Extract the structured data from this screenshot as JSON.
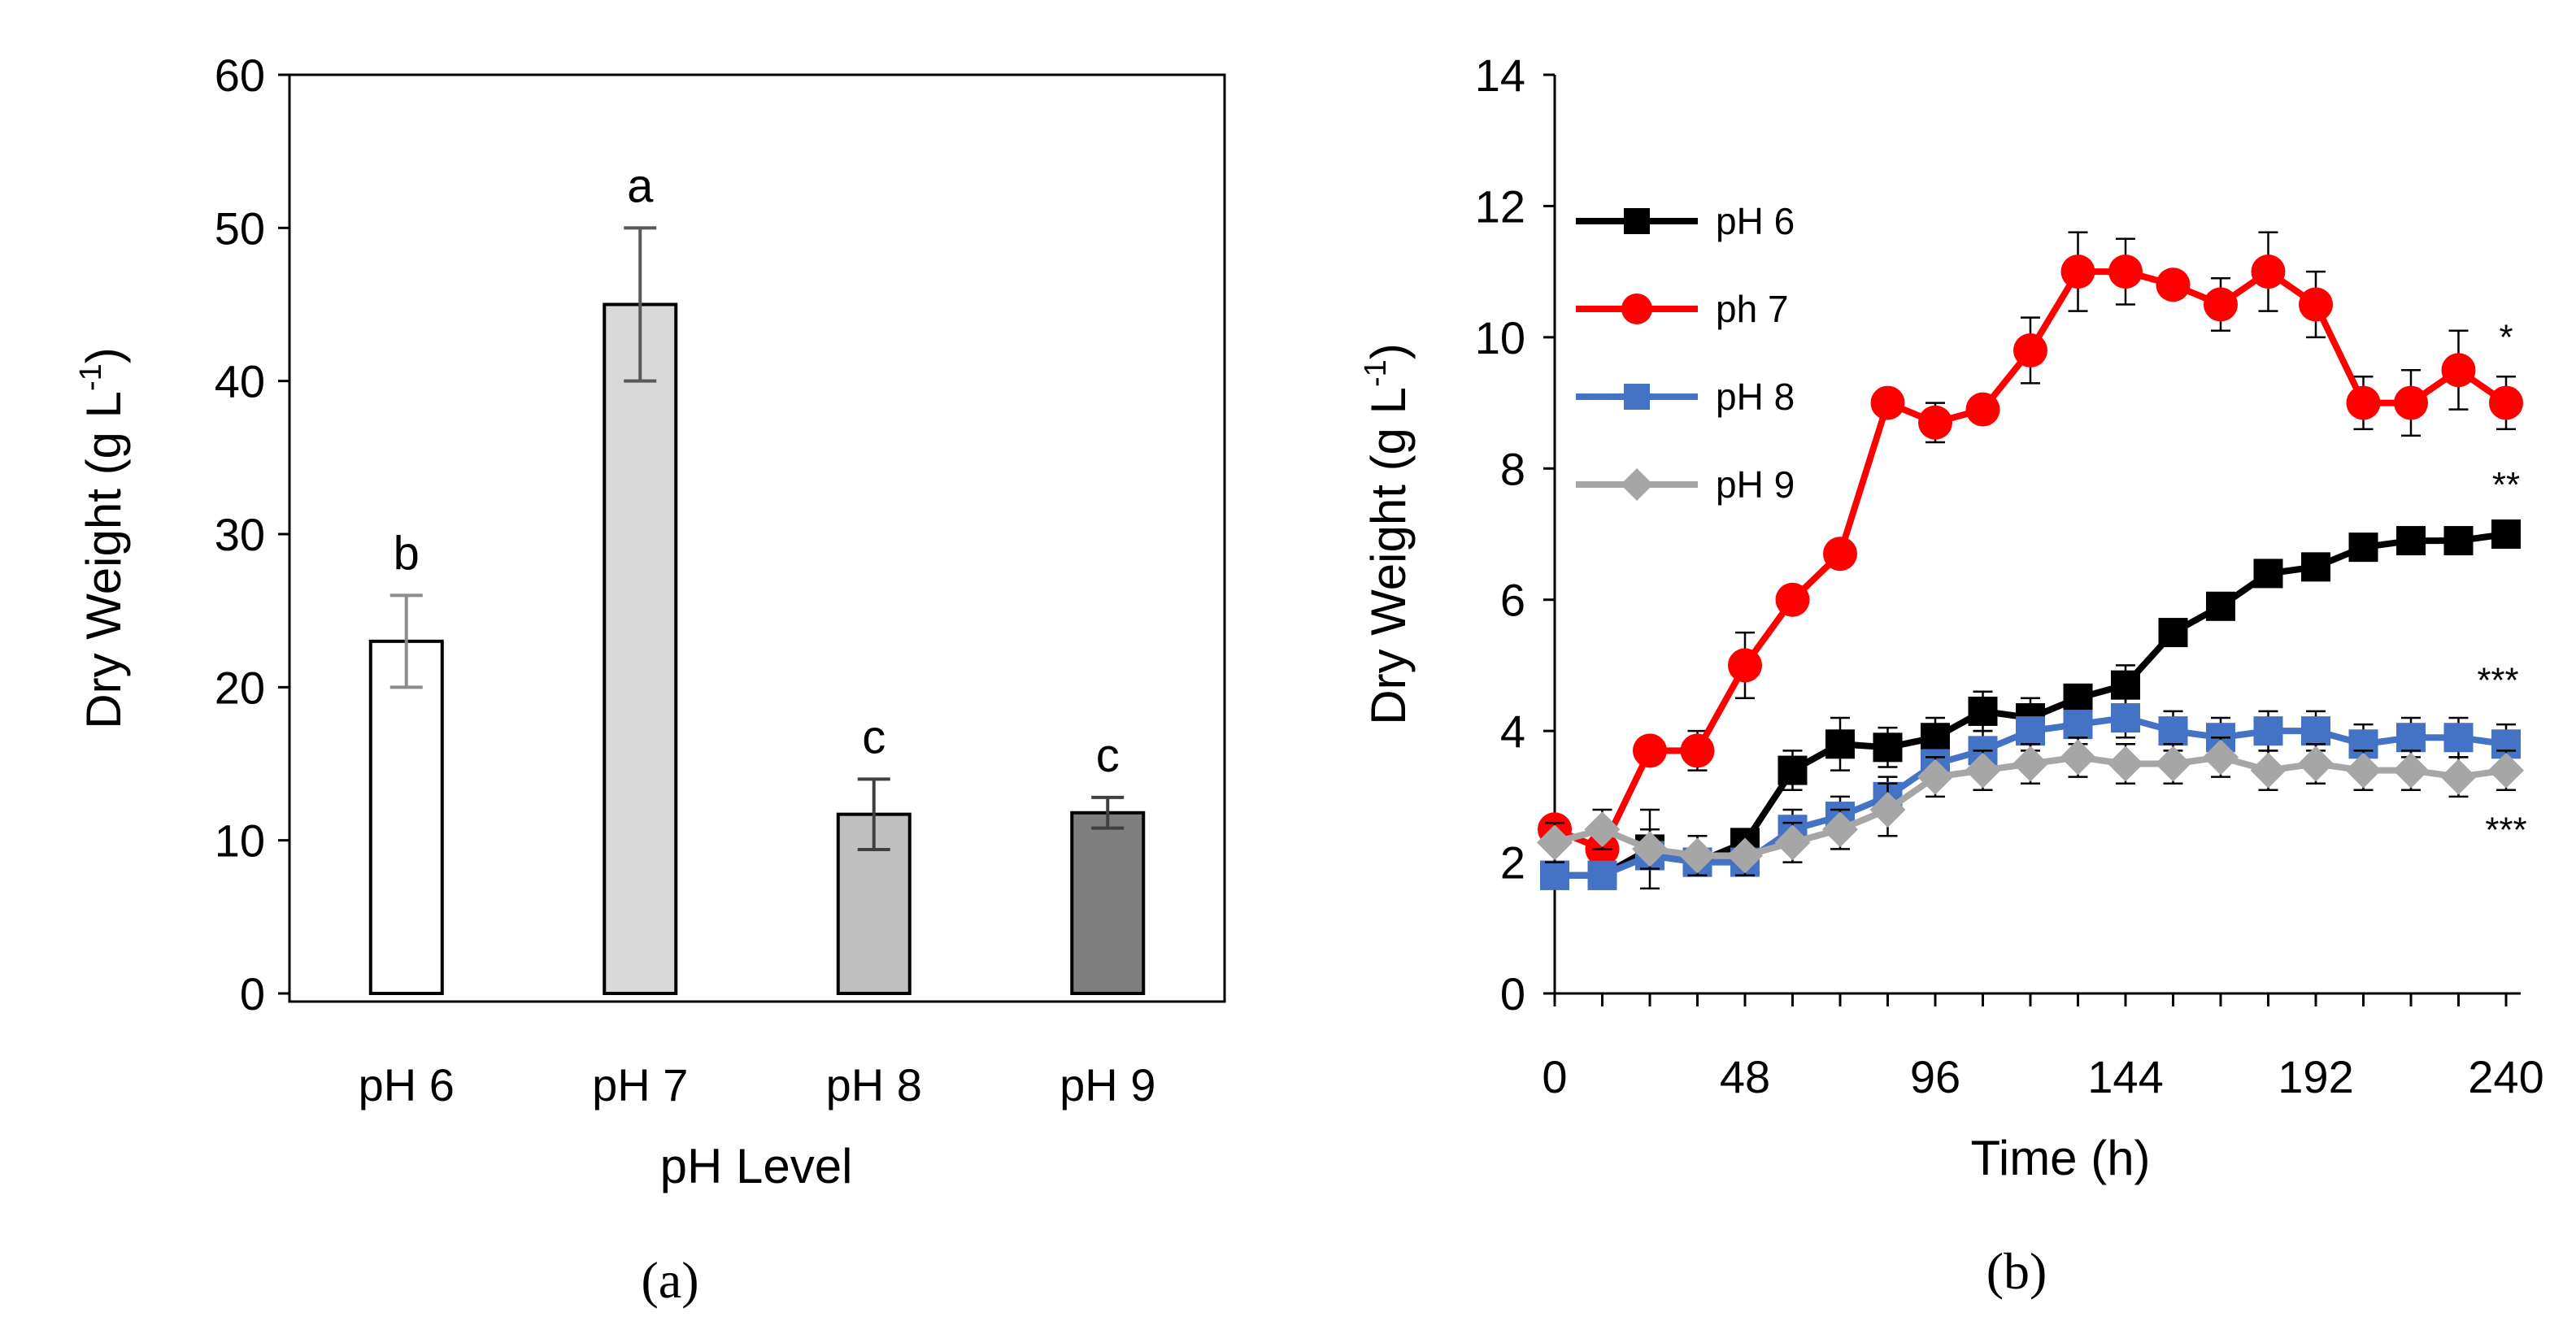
{
  "chart_data": [
    {
      "panel_label": "(a)",
      "type": "bar",
      "xlabel": "pH Level",
      "ylabel": "Dry Weight (g L",
      "ylabel_sup": "-1",
      "ylabel_end": ")",
      "ylim": [
        0,
        60
      ],
      "yticks": [
        "0",
        "10",
        "20",
        "30",
        "40",
        "50",
        "60"
      ],
      "categories": [
        "pH 6",
        "pH 7",
        "pH 8",
        "pH 9"
      ],
      "values": [
        23,
        45,
        11.7,
        11.8
      ],
      "errors": [
        3,
        5,
        2.3,
        1
      ],
      "letters": [
        "b",
        "a",
        "c",
        "c"
      ],
      "colors": [
        "#ffffff",
        "#d9d9d9",
        "#bfbfbf",
        "#7f7f7f"
      ],
      "error_colors": [
        "#8c8c8c",
        "#595959",
        "#404040",
        "#404040"
      ]
    },
    {
      "panel_label": "(b)",
      "type": "line",
      "xlabel": "Time (h)",
      "ylabel": "Dry Weight (g L",
      "ylabel_sup": "-1",
      "ylabel_end": ")",
      "xlim": [
        0,
        240
      ],
      "ylim": [
        0,
        14
      ],
      "xticks": [
        "0",
        "48",
        "96",
        "144",
        "192",
        "240"
      ],
      "yticks": [
        "0",
        "2",
        "4",
        "6",
        "8",
        "10",
        "12",
        "14"
      ],
      "x": [
        0,
        12,
        24,
        36,
        48,
        60,
        72,
        84,
        96,
        108,
        120,
        132,
        144,
        156,
        168,
        180,
        192,
        204,
        216,
        228,
        240
      ],
      "series": [
        {
          "name": "pH 6",
          "color": "#000000",
          "marker": "square",
          "values": [
            1.8,
            1.8,
            2.2,
            2.0,
            2.3,
            3.4,
            3.8,
            3.75,
            3.9,
            4.3,
            4.2,
            4.5,
            4.7,
            5.5,
            5.9,
            6.4,
            6.5,
            6.8,
            6.9,
            6.9,
            7.0
          ],
          "errors": [
            0.2,
            0.2,
            0.6,
            0.2,
            0.2,
            0.3,
            0.4,
            0.3,
            0.3,
            0.3,
            0.3,
            0.2,
            0.3,
            0.2,
            0.2,
            0.2,
            0.2,
            0.2,
            0.2,
            0.2,
            0.2
          ],
          "annotation": "**"
        },
        {
          "name": "ph 7",
          "color": "#ff0000",
          "marker": "circle",
          "values": [
            2.5,
            2.2,
            3.7,
            3.7,
            5.0,
            6.0,
            6.7,
            9.0,
            8.7,
            8.9,
            9.8,
            11.0,
            11.0,
            10.8,
            10.5,
            11.0,
            10.5,
            9.0,
            9.0,
            9.5,
            9.0
          ],
          "errors": [
            0.2,
            0.2,
            0.2,
            0.3,
            0.5,
            0.2,
            0.2,
            0.2,
            0.3,
            0.2,
            0.5,
            0.6,
            0.5,
            0.2,
            0.4,
            0.6,
            0.5,
            0.4,
            0.5,
            0.6,
            0.4
          ],
          "annotation": "*"
        },
        {
          "name": "pH 8",
          "color": "#4472c4",
          "marker": "square",
          "values": [
            1.8,
            1.8,
            2.1,
            2.0,
            2.0,
            2.5,
            2.7,
            3.0,
            3.5,
            3.7,
            4.0,
            4.1,
            4.2,
            4.0,
            3.9,
            4.0,
            4.0,
            3.8,
            3.9,
            3.9,
            3.8
          ],
          "errors": [
            0.2,
            0.2,
            0.2,
            0.2,
            0.2,
            0.3,
            0.3,
            0.3,
            0.3,
            0.3,
            0.3,
            0.3,
            0.3,
            0.3,
            0.3,
            0.3,
            0.3,
            0.3,
            0.3,
            0.3,
            0.3
          ],
          "annotation": "***"
        },
        {
          "name": "pH 9",
          "color": "#a6a6a6",
          "marker": "diamond",
          "values": [
            2.3,
            2.5,
            2.2,
            2.1,
            2.1,
            2.3,
            2.5,
            2.8,
            3.3,
            3.4,
            3.5,
            3.6,
            3.5,
            3.5,
            3.6,
            3.4,
            3.5,
            3.4,
            3.4,
            3.3,
            3.4
          ],
          "errors": [
            0.3,
            0.3,
            0.3,
            0.3,
            0.3,
            0.3,
            0.3,
            0.4,
            0.3,
            0.3,
            0.3,
            0.3,
            0.3,
            0.3,
            0.3,
            0.3,
            0.3,
            0.3,
            0.3,
            0.3,
            0.3
          ],
          "annotation": "***"
        }
      ]
    }
  ]
}
